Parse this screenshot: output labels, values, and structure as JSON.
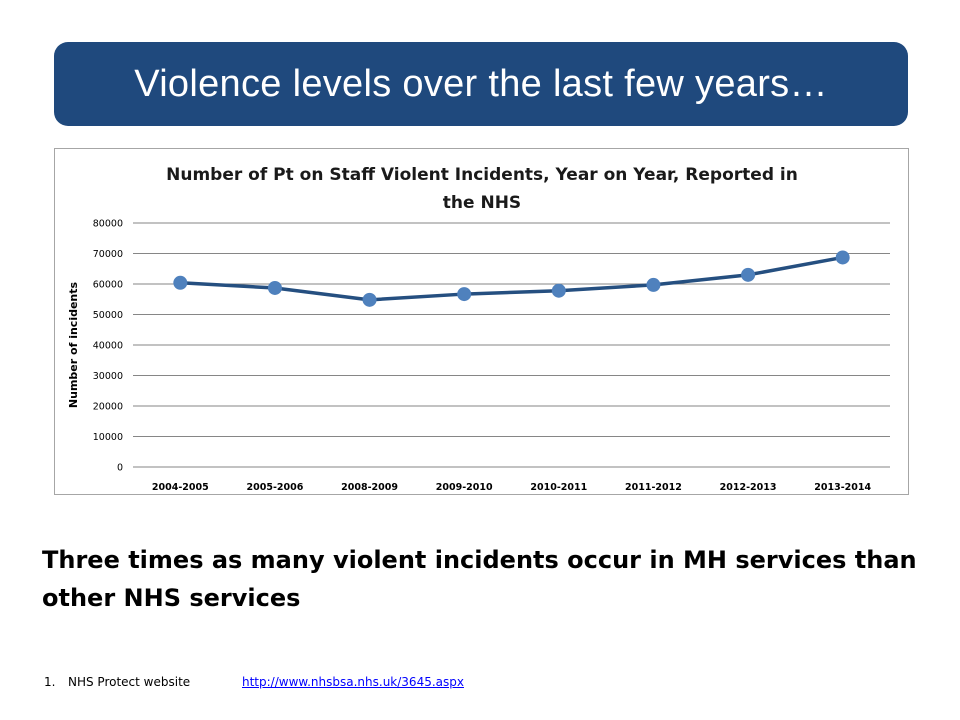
{
  "slide": {
    "title": "Violence levels over the last few years…",
    "summary": "Three times as many violent incidents occur in MH services than other NHS services",
    "footnote": {
      "number": "1.",
      "source": "NHS Protect website",
      "link": "http://www.nhsbsa.nhs.uk/3645.aspx"
    }
  },
  "chart_data": {
    "type": "line",
    "title_lines": [
      "Number of Pt on Staff Violent Incidents, Year on Year, Reported in",
      "the NHS"
    ],
    "xlabel": "",
    "ylabel": "Number of incidents",
    "ylim": [
      0,
      80000
    ],
    "yticks": [
      0,
      10000,
      20000,
      30000,
      40000,
      50000,
      60000,
      70000,
      80000
    ],
    "categories": [
      "2004-2005",
      "2005-2006",
      "2008-2009",
      "2009-2010",
      "2010-2011",
      "2011-2012",
      "2012-2013",
      "2013-2014"
    ],
    "series": [
      {
        "values": [
          60400,
          58700,
          54800,
          56700,
          57800,
          59700,
          63000,
          68700
        ]
      }
    ],
    "grid": true,
    "legend": "none",
    "colors": {
      "line": "#254f80",
      "marker": "#4f81bd",
      "grid": "#868686"
    }
  }
}
